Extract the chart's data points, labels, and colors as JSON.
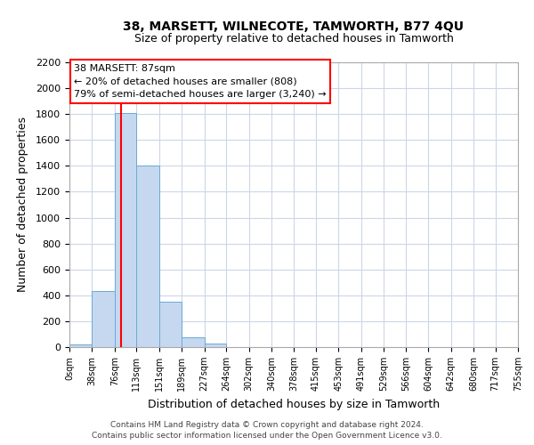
{
  "title": "38, MARSETT, WILNECOTE, TAMWORTH, B77 4QU",
  "subtitle": "Size of property relative to detached houses in Tamworth",
  "xlabel": "Distribution of detached houses by size in Tamworth",
  "ylabel": "Number of detached properties",
  "bar_values": [
    20,
    430,
    1810,
    1400,
    350,
    75,
    25,
    0,
    0,
    0,
    0,
    0,
    0,
    0,
    0,
    0,
    0,
    0,
    0,
    0
  ],
  "bin_labels": [
    "0sqm",
    "38sqm",
    "76sqm",
    "113sqm",
    "151sqm",
    "189sqm",
    "227sqm",
    "264sqm",
    "302sqm",
    "340sqm",
    "378sqm",
    "415sqm",
    "453sqm",
    "491sqm",
    "529sqm",
    "566sqm",
    "604sqm",
    "642sqm",
    "680sqm",
    "717sqm",
    "755sqm"
  ],
  "bar_color": "#c5d8f0",
  "bar_edge_color": "#6aaad4",
  "property_line_x": 87,
  "bin_edges": [
    0,
    38,
    76,
    113,
    151,
    189,
    227,
    264,
    302,
    340,
    378,
    415,
    453,
    491,
    529,
    566,
    604,
    642,
    680,
    717,
    755
  ],
  "ylim": [
    0,
    2200
  ],
  "yticks": [
    0,
    200,
    400,
    600,
    800,
    1000,
    1200,
    1400,
    1600,
    1800,
    2000,
    2200
  ],
  "annotation_title": "38 MARSETT: 87sqm",
  "annotation_line1": "← 20% of detached houses are smaller (808)",
  "annotation_line2": "79% of semi-detached houses are larger (3,240) →",
  "footnote1": "Contains HM Land Registry data © Crown copyright and database right 2024.",
  "footnote2": "Contains public sector information licensed under the Open Government Licence v3.0.",
  "background_color": "#ffffff",
  "grid_color": "#ccd6e8"
}
